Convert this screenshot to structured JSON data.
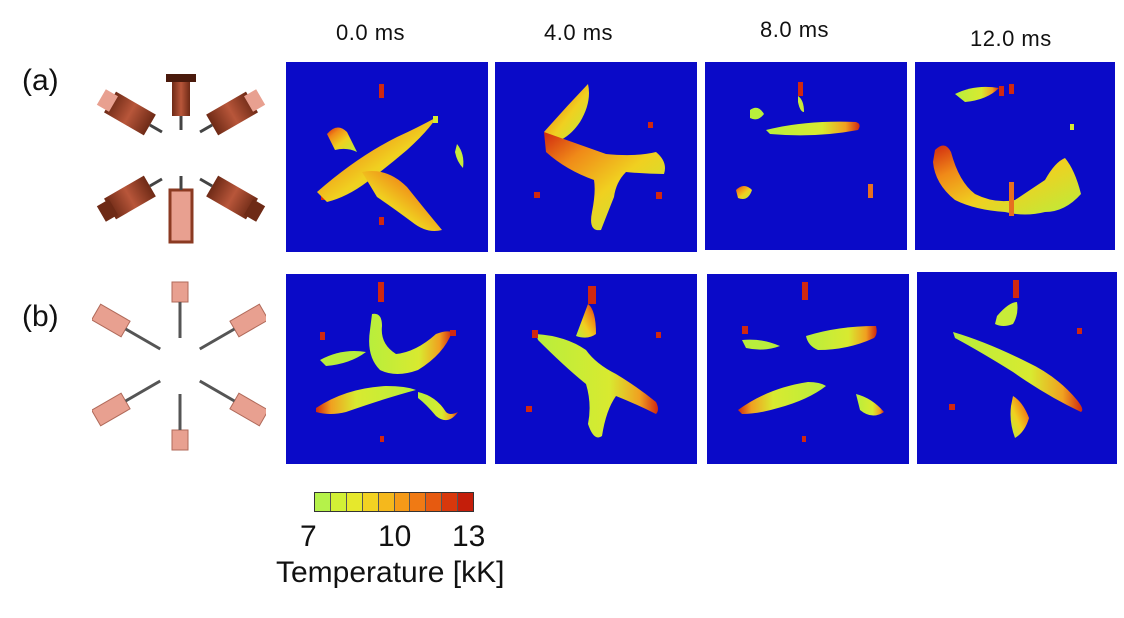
{
  "time_labels": [
    "0.0 ms",
    "4.0 ms",
    "8.0 ms",
    "12.0 ms"
  ],
  "row_labels": [
    "(a)",
    "(b)"
  ],
  "colorbar": {
    "ticks": [
      "7",
      "10",
      "13"
    ],
    "title": "Temperature [kK]",
    "colors": [
      "#b5f24a",
      "#d2f036",
      "#e6e82c",
      "#f2d222",
      "#f5b81c",
      "#f59a18",
      "#f07a14",
      "#e65a10",
      "#d8380c",
      "#c41e0a"
    ]
  },
  "colors": {
    "panel_bg": "#0a0ac8",
    "arc_green": "#b8ee3c",
    "arc_yellow": "#f0d020",
    "arc_orange": "#f08a18",
    "arc_red": "#d02810",
    "electrode_dark": "#8b3a22",
    "electrode_light": "#e8a090"
  }
}
